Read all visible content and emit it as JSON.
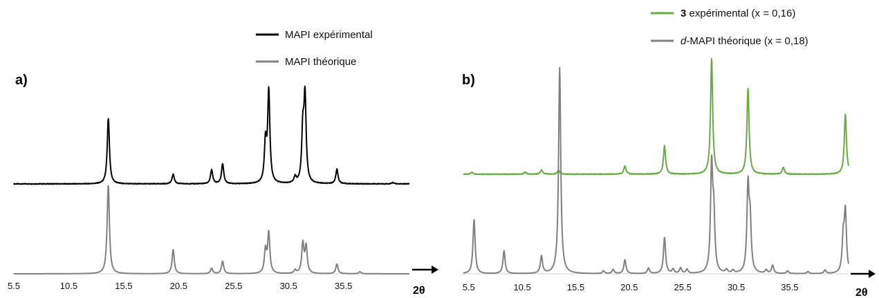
{
  "colors": {
    "experimental_a": "#000000",
    "theoretical": "#808080",
    "experimental_b": "#6aaa44"
  },
  "chart_data": [
    {
      "type": "line",
      "panel_label": "a)",
      "xlabel": "2θ",
      "xlim": [
        5.5,
        41.5
      ],
      "x_ticks": [
        "5.5",
        "10.5",
        "15.5",
        "20.5",
        "25.5",
        "30.5",
        "35.5"
      ],
      "y_ticks": [],
      "grid": false,
      "legend_position": "top-center",
      "series": [
        {
          "name": "MAPI expérimental",
          "color": "#000000",
          "baseline": 0.5,
          "peaks": [
            {
              "x": 14.1,
              "h": 95
            },
            {
              "x": 20.0,
              "h": 14
            },
            {
              "x": 23.5,
              "h": 20
            },
            {
              "x": 24.5,
              "h": 29
            },
            {
              "x": 28.4,
              "h": 57
            },
            {
              "x": 28.7,
              "h": 132
            },
            {
              "x": 31.1,
              "h": 9
            },
            {
              "x": 31.8,
              "h": 72
            },
            {
              "x": 32.0,
              "h": 121
            },
            {
              "x": 34.9,
              "h": 21
            },
            {
              "x": 40.0,
              "h": 2
            }
          ]
        },
        {
          "name": "MAPI théorique",
          "color": "#808080",
          "baseline": 0,
          "peaks": [
            {
              "x": 14.0,
              "h": 10
            },
            {
              "x": 14.1,
              "h": 122
            },
            {
              "x": 20.0,
              "h": 35
            },
            {
              "x": 23.5,
              "h": 8
            },
            {
              "x": 24.5,
              "h": 18
            },
            {
              "x": 28.4,
              "h": 33
            },
            {
              "x": 28.7,
              "h": 58
            },
            {
              "x": 31.1,
              "h": 5
            },
            {
              "x": 31.8,
              "h": 43
            },
            {
              "x": 32.1,
              "h": 38
            },
            {
              "x": 34.9,
              "h": 14
            },
            {
              "x": 37.0,
              "h": 3
            }
          ]
        }
      ]
    },
    {
      "type": "line",
      "panel_label": "b)",
      "xlabel": "2θ",
      "xlim": [
        5.0,
        41.0
      ],
      "x_ticks": [
        "5.5",
        "10.5",
        "15.5",
        "20.5",
        "25.5",
        "30.5",
        "35.5"
      ],
      "y_ticks": [],
      "grid": false,
      "legend_position": "top-right",
      "series": [
        {
          "name_bold_prefix": "3",
          "name": " expérimental (x = 0,16)",
          "color": "#6aaa44",
          "baseline": 0.5,
          "peaks": [
            {
              "x": 5.8,
              "h": 3
            },
            {
              "x": 10.8,
              "h": 3
            },
            {
              "x": 12.3,
              "h": 6
            },
            {
              "x": 13.9,
              "h": 6
            },
            {
              "x": 20.1,
              "h": 12
            },
            {
              "x": 23.8,
              "h": 41
            },
            {
              "x": 28.2,
              "h": 167
            },
            {
              "x": 31.6,
              "h": 125
            },
            {
              "x": 34.9,
              "h": 10
            },
            {
              "x": 40.7,
              "h": 87
            }
          ]
        },
        {
          "name_italic_prefix": "d",
          "name": "-MAPI  théorique (x = 0,18)",
          "color": "#808080",
          "baseline": 0,
          "peaks": [
            {
              "x": 6.0,
              "h": 78
            },
            {
              "x": 8.8,
              "h": 33
            },
            {
              "x": 12.3,
              "h": 25
            },
            {
              "x": 14.0,
              "h": 298
            },
            {
              "x": 18.1,
              "h": 4
            },
            {
              "x": 19.0,
              "h": 6
            },
            {
              "x": 20.1,
              "h": 20
            },
            {
              "x": 22.3,
              "h": 8
            },
            {
              "x": 23.8,
              "h": 52
            },
            {
              "x": 24.6,
              "h": 6
            },
            {
              "x": 25.3,
              "h": 8
            },
            {
              "x": 25.9,
              "h": 6
            },
            {
              "x": 28.2,
              "h": 152
            },
            {
              "x": 28.4,
              "h": 76
            },
            {
              "x": 29.6,
              "h": 5
            },
            {
              "x": 30.2,
              "h": 4
            },
            {
              "x": 31.6,
              "h": 122
            },
            {
              "x": 31.8,
              "h": 70
            },
            {
              "x": 33.3,
              "h": 5
            },
            {
              "x": 33.9,
              "h": 12
            },
            {
              "x": 35.3,
              "h": 4
            },
            {
              "x": 37.2,
              "h": 3
            },
            {
              "x": 38.8,
              "h": 5
            },
            {
              "x": 40.5,
              "h": 48
            },
            {
              "x": 40.7,
              "h": 86
            }
          ]
        }
      ]
    }
  ]
}
